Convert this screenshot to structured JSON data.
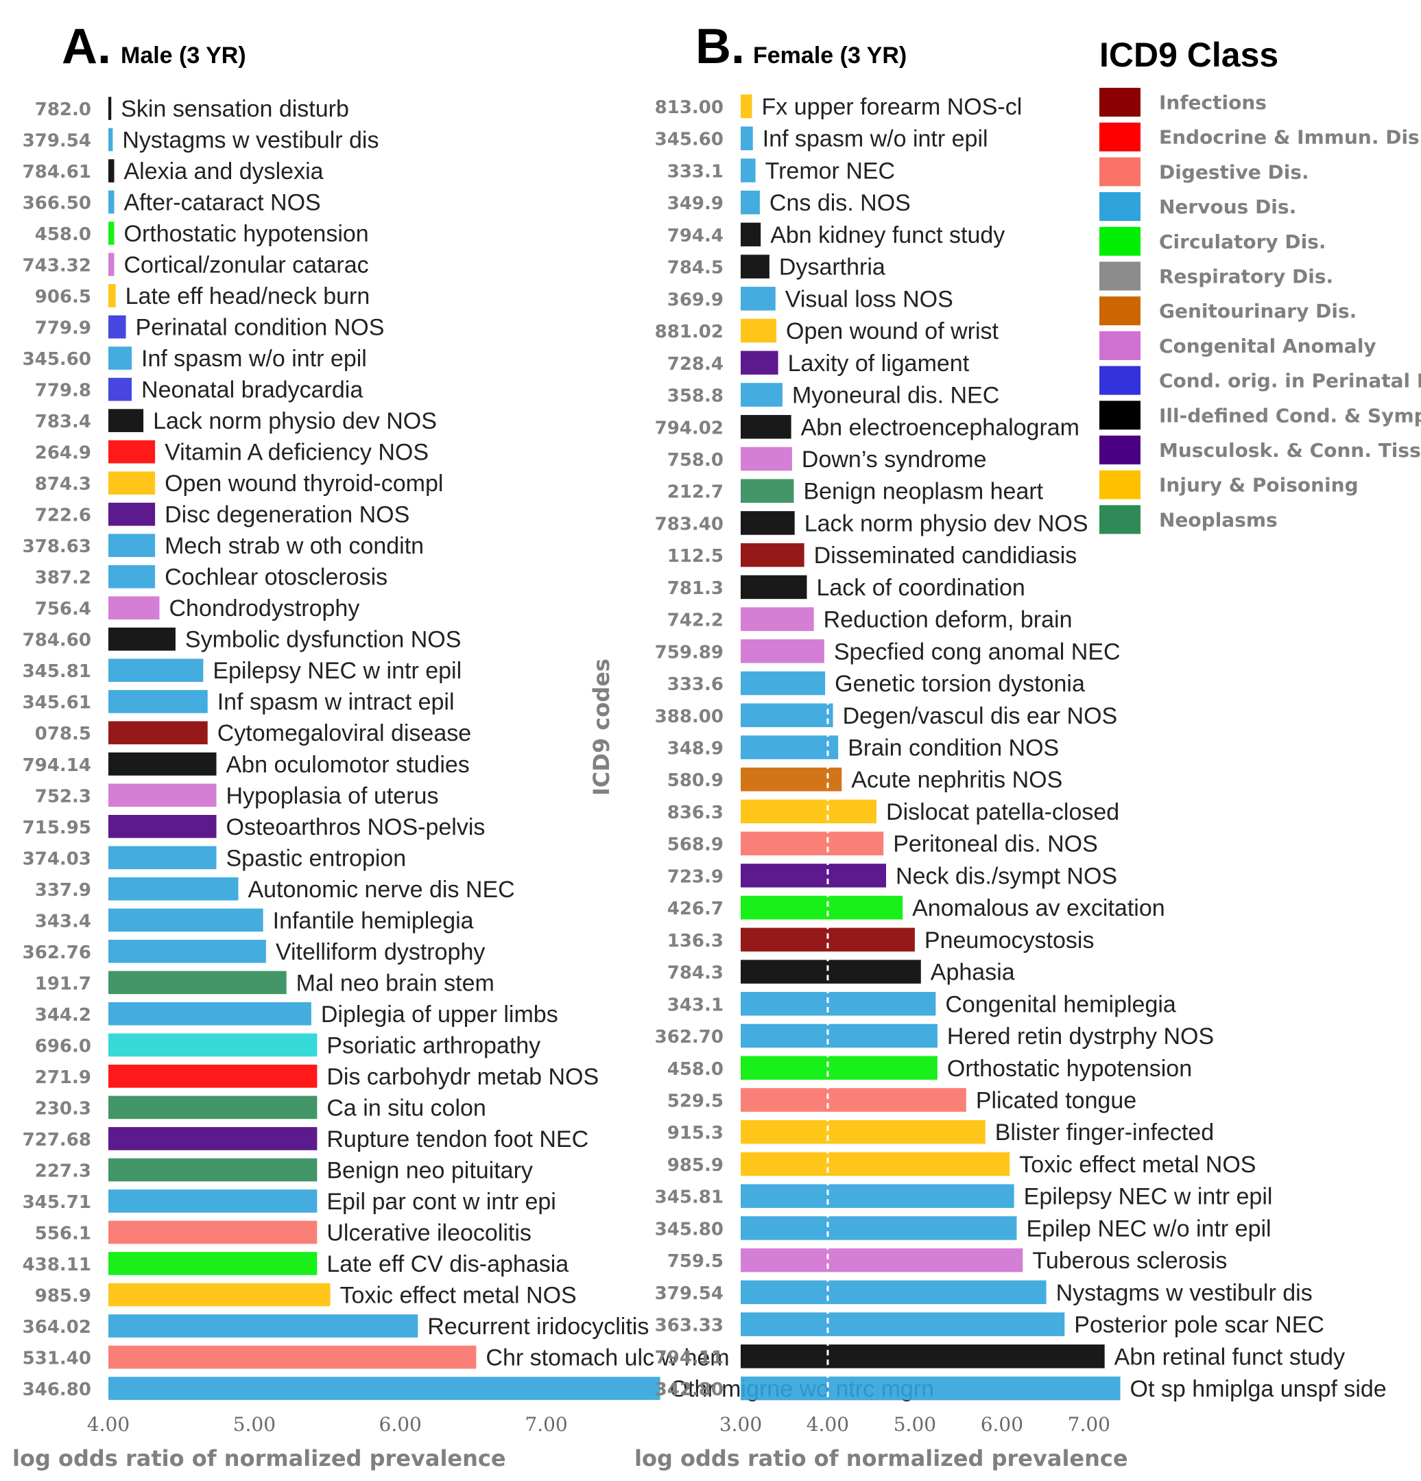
{
  "ylabel": "ICD9 codes",
  "legend": {
    "title": "ICD9 Class",
    "items": [
      {
        "key": "infections",
        "label": "Infections",
        "color": "#8b0000"
      },
      {
        "key": "endocrine",
        "label": "Endocrine & Immun. Dis.",
        "color": "#ff0000"
      },
      {
        "key": "digestive",
        "label": "Digestive Dis.",
        "color": "#fa7268"
      },
      {
        "key": "nervous",
        "label": "Nervous Dis.",
        "color": "#30a3dc"
      },
      {
        "key": "circulatory",
        "label": "Circulatory Dis.",
        "color": "#00ee00"
      },
      {
        "key": "respiratory",
        "label": "Respiratory Dis.",
        "color": "#8c8c8c"
      },
      {
        "key": "genitourinary",
        "label": "Genitourinary Dis.",
        "color": "#cd6600"
      },
      {
        "key": "congenital",
        "label": "Congenital Anomaly",
        "color": "#d070d0"
      },
      {
        "key": "perinatal",
        "label": "Cond. orig. in Perinatal Per",
        "color": "#3333dd"
      },
      {
        "key": "illdefined",
        "label": "Ill-defined Cond. & Symp.",
        "color": "#000000"
      },
      {
        "key": "musculoskeletal",
        "label": "Musculosk. & Conn. Tiss.",
        "color": "#4b0082"
      },
      {
        "key": "injury",
        "label": "Injury & Poisoning",
        "color": "#ffc000"
      },
      {
        "key": "neoplasms",
        "label": "Neoplasms",
        "color": "#2e8b57"
      },
      {
        "key": "skin",
        "label": "",
        "color": "#20d4d4"
      }
    ]
  },
  "chart_data": [
    {
      "type": "bar",
      "orientation": "horizontal",
      "panel": "A.",
      "title": "Male (3 YR)",
      "xlabel": "log odds ratio of normalized prevalence",
      "ylabel": "ICD9 codes",
      "xlim": [
        4.0,
        8.2
      ],
      "xticks": [
        "4.00",
        "5.00",
        "6.00",
        "7.00"
      ],
      "bars": [
        {
          "code": "782.0",
          "label": "Skin sensation disturb",
          "value": 4.02,
          "class": "illdefined"
        },
        {
          "code": "379.54",
          "label": "Nystagms w vestibulr dis",
          "value": 4.03,
          "class": "nervous"
        },
        {
          "code": "784.61",
          "label": "Alexia and dyslexia",
          "value": 4.04,
          "class": "illdefined"
        },
        {
          "code": "366.50",
          "label": "After-cataract NOS",
          "value": 4.04,
          "class": "nervous"
        },
        {
          "code": "458.0",
          "label": "Orthostatic hypotension",
          "value": 4.04,
          "class": "circulatory"
        },
        {
          "code": "743.32",
          "label": "Cortical/zonular catarac",
          "value": 4.04,
          "class": "congenital"
        },
        {
          "code": "906.5",
          "label": "Late eff head/neck burn",
          "value": 4.05,
          "class": "injury"
        },
        {
          "code": "779.9",
          "label": "Perinatal condition NOS",
          "value": 4.12,
          "class": "perinatal"
        },
        {
          "code": "345.60",
          "label": "Inf spasm w/o intr epil",
          "value": 4.16,
          "class": "nervous"
        },
        {
          "code": "779.8",
          "label": "Neonatal bradycardia",
          "value": 4.16,
          "class": "perinatal"
        },
        {
          "code": "783.4",
          "label": "Lack norm physio dev NOS",
          "value": 4.24,
          "class": "illdefined"
        },
        {
          "code": "264.9",
          "label": "Vitamin A deficiency NOS",
          "value": 4.32,
          "class": "endocrine"
        },
        {
          "code": "874.3",
          "label": "Open wound thyroid-compl",
          "value": 4.32,
          "class": "injury"
        },
        {
          "code": "722.6",
          "label": "Disc degeneration NOS",
          "value": 4.32,
          "class": "musculoskeletal"
        },
        {
          "code": "378.63",
          "label": "Mech strab w oth conditn",
          "value": 4.32,
          "class": "nervous"
        },
        {
          "code": "387.2",
          "label": "Cochlear otosclerosis",
          "value": 4.32,
          "class": "nervous"
        },
        {
          "code": "756.4",
          "label": "Chondrodystrophy",
          "value": 4.35,
          "class": "congenital"
        },
        {
          "code": "784.60",
          "label": "Symbolic dysfunction NOS",
          "value": 4.46,
          "class": "illdefined"
        },
        {
          "code": "345.81",
          "label": "Epilepsy NEC w intr epil",
          "value": 4.65,
          "class": "nervous"
        },
        {
          "code": "345.61",
          "label": "Inf spasm w intract epil",
          "value": 4.68,
          "class": "nervous"
        },
        {
          "code": "078.5",
          "label": "Cytomegaloviral disease",
          "value": 4.68,
          "class": "infections"
        },
        {
          "code": "794.14",
          "label": "Abn oculomotor studies",
          "value": 4.74,
          "class": "illdefined"
        },
        {
          "code": "752.3",
          "label": "Hypoplasia of uterus",
          "value": 4.74,
          "class": "congenital"
        },
        {
          "code": "715.95",
          "label": "Osteoarthros NOS-pelvis",
          "value": 4.74,
          "class": "musculoskeletal"
        },
        {
          "code": "374.03",
          "label": "Spastic entropion",
          "value": 4.74,
          "class": "nervous"
        },
        {
          "code": "337.9",
          "label": "Autonomic nerve dis NEC",
          "value": 4.89,
          "class": "nervous"
        },
        {
          "code": "343.4",
          "label": "Infantile hemiplegia",
          "value": 5.06,
          "class": "nervous"
        },
        {
          "code": "362.76",
          "label": "Vitelliform dystrophy",
          "value": 5.08,
          "class": "nervous"
        },
        {
          "code": "191.7",
          "label": "Mal neo brain stem",
          "value": 5.22,
          "class": "neoplasms"
        },
        {
          "code": "344.2",
          "label": "Diplegia of upper limbs",
          "value": 5.39,
          "class": "nervous"
        },
        {
          "code": "696.0",
          "label": "Psoriatic arthropathy",
          "value": 5.43,
          "class": "skin"
        },
        {
          "code": "271.9",
          "label": "Dis carbohydr metab NOS",
          "value": 5.43,
          "class": "endocrine"
        },
        {
          "code": "230.3",
          "label": "Ca in situ colon",
          "value": 5.43,
          "class": "neoplasms"
        },
        {
          "code": "727.68",
          "label": "Rupture tendon foot NEC",
          "value": 5.43,
          "class": "musculoskeletal"
        },
        {
          "code": "227.3",
          "label": "Benign neo pituitary",
          "value": 5.43,
          "class": "neoplasms"
        },
        {
          "code": "345.71",
          "label": "Epil par cont w intr epi",
          "value": 5.43,
          "class": "nervous"
        },
        {
          "code": "556.1",
          "label": "Ulcerative ileocolitis",
          "value": 5.43,
          "class": "digestive"
        },
        {
          "code": "438.11",
          "label": "Late eff CV dis-aphasia",
          "value": 5.43,
          "class": "circulatory"
        },
        {
          "code": "985.9",
          "label": "Toxic effect metal NOS",
          "value": 5.52,
          "class": "injury"
        },
        {
          "code": "364.02",
          "label": "Recurrent iridocyclitis",
          "value": 6.12,
          "class": "nervous"
        },
        {
          "code": "531.40",
          "label": "Chr stomach ulc w hem",
          "value": 6.52,
          "class": "digestive"
        },
        {
          "code": "346.80",
          "label": "Othr migrne wo ntrc mgrn",
          "value": 7.78,
          "class": "nervous"
        }
      ]
    },
    {
      "type": "bar",
      "orientation": "horizontal",
      "panel": "B.",
      "title": "Female (3 YR)",
      "xlabel": "log odds ratio of normalized prevalence",
      "ylabel": "ICD9 codes",
      "xlim": [
        3.0,
        7.6
      ],
      "xticks": [
        "3.00",
        "4.00",
        "5.00",
        "6.00",
        "7.00"
      ],
      "reference_line": 4.0,
      "bars": [
        {
          "code": "813.00",
          "label": "Fx upper forearm NOS-cl",
          "value": 3.13,
          "class": "injury"
        },
        {
          "code": "345.60",
          "label": "Inf spasm w/o intr epil",
          "value": 3.14,
          "class": "nervous"
        },
        {
          "code": "333.1",
          "label": "Tremor NEC",
          "value": 3.17,
          "class": "nervous"
        },
        {
          "code": "349.9",
          "label": "Cns dis. NOS",
          "value": 3.22,
          "class": "nervous"
        },
        {
          "code": "794.4",
          "label": "Abn kidney funct study",
          "value": 3.23,
          "class": "illdefined"
        },
        {
          "code": "784.5",
          "label": "Dysarthria",
          "value": 3.33,
          "class": "illdefined"
        },
        {
          "code": "369.9",
          "label": "Visual loss NOS",
          "value": 3.4,
          "class": "nervous"
        },
        {
          "code": "881.02",
          "label": "Open wound of wrist",
          "value": 3.41,
          "class": "injury"
        },
        {
          "code": "728.4",
          "label": "Laxity of ligament",
          "value": 3.43,
          "class": "musculoskeletal"
        },
        {
          "code": "358.8",
          "label": "Myoneural dis. NEC",
          "value": 3.48,
          "class": "nervous"
        },
        {
          "code": "794.02",
          "label": "Abn electroencephalogram",
          "value": 3.58,
          "class": "illdefined"
        },
        {
          "code": "758.0",
          "label": "Down’s syndrome",
          "value": 3.59,
          "class": "congenital"
        },
        {
          "code": "212.7",
          "label": "Benign neoplasm heart",
          "value": 3.61,
          "class": "neoplasms"
        },
        {
          "code": "783.40",
          "label": "Lack norm physio dev NOS",
          "value": 3.62,
          "class": "illdefined"
        },
        {
          "code": "112.5",
          "label": "Disseminated candidiasis",
          "value": 3.73,
          "class": "infections"
        },
        {
          "code": "781.3",
          "label": "Lack of coordination",
          "value": 3.76,
          "class": "illdefined"
        },
        {
          "code": "742.2",
          "label": "Reduction deform, brain",
          "value": 3.84,
          "class": "congenital"
        },
        {
          "code": "759.89",
          "label": "Specfied cong anomal NEC",
          "value": 3.96,
          "class": "congenital"
        },
        {
          "code": "333.6",
          "label": "Genetic torsion dystonia",
          "value": 3.97,
          "class": "nervous"
        },
        {
          "code": "388.00",
          "label": "Degen/vascul dis ear NOS",
          "value": 4.06,
          "class": "nervous"
        },
        {
          "code": "348.9",
          "label": "Brain condition NOS",
          "value": 4.12,
          "class": "nervous"
        },
        {
          "code": "580.9",
          "label": "Acute nephritis NOS",
          "value": 4.16,
          "class": "genitourinary"
        },
        {
          "code": "836.3",
          "label": "Dislocat patella-closed",
          "value": 4.56,
          "class": "injury"
        },
        {
          "code": "568.9",
          "label": "Peritoneal dis. NOS",
          "value": 4.64,
          "class": "digestive"
        },
        {
          "code": "723.9",
          "label": "Neck dis./sympt NOS",
          "value": 4.67,
          "class": "musculoskeletal"
        },
        {
          "code": "426.7",
          "label": "Anomalous av excitation",
          "value": 4.86,
          "class": "circulatory"
        },
        {
          "code": "136.3",
          "label": "Pneumocystosis",
          "value": 5.0,
          "class": "infections"
        },
        {
          "code": "784.3",
          "label": "Aphasia",
          "value": 5.07,
          "class": "illdefined"
        },
        {
          "code": "343.1",
          "label": "Congenital hemiplegia",
          "value": 5.24,
          "class": "nervous"
        },
        {
          "code": "362.70",
          "label": "Hered retin dystrphy NOS",
          "value": 5.26,
          "class": "nervous"
        },
        {
          "code": "458.0",
          "label": "Orthostatic hypotension",
          "value": 5.26,
          "class": "circulatory"
        },
        {
          "code": "529.5",
          "label": "Plicated tongue",
          "value": 5.59,
          "class": "digestive"
        },
        {
          "code": "915.3",
          "label": "Blister finger-infected",
          "value": 5.81,
          "class": "injury"
        },
        {
          "code": "985.9",
          "label": "Toxic effect metal NOS",
          "value": 6.09,
          "class": "injury"
        },
        {
          "code": "345.81",
          "label": "Epilepsy NEC w intr epil",
          "value": 6.14,
          "class": "nervous"
        },
        {
          "code": "345.80",
          "label": "Epilep NEC w/o intr epil",
          "value": 6.17,
          "class": "nervous"
        },
        {
          "code": "759.5",
          "label": "Tuberous sclerosis",
          "value": 6.24,
          "class": "congenital"
        },
        {
          "code": "379.54",
          "label": "Nystagms w vestibulr dis",
          "value": 6.51,
          "class": "nervous"
        },
        {
          "code": "363.33",
          "label": "Posterior pole scar NEC",
          "value": 6.72,
          "class": "nervous"
        },
        {
          "code": "794.11",
          "label": "Abn retinal funct study",
          "value": 7.18,
          "class": "illdefined"
        },
        {
          "code": "342.80",
          "label": "Ot sp hmiplga unspf side",
          "value": 7.36,
          "class": "nervous"
        }
      ]
    }
  ]
}
